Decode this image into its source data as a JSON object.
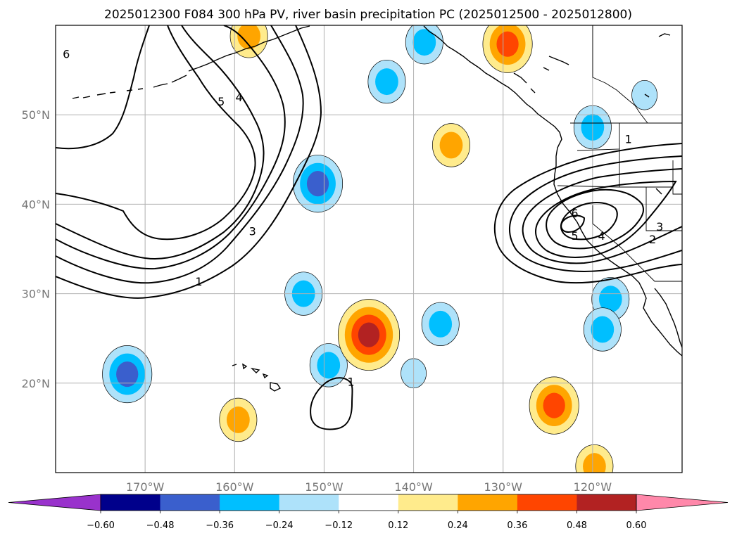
{
  "chart_data": {
    "type": "contour",
    "title": "2025012300 F084 300 hPa PV, river basin precipitation PC (2025012500 - 2025012800)",
    "map": {
      "lon_range": [
        -180,
        -110
      ],
      "lat_range": [
        10,
        60
      ],
      "x_ticks": [
        {
          "lon": -170,
          "label": "170°W"
        },
        {
          "lon": -160,
          "label": "160°W"
        },
        {
          "lon": -150,
          "label": "150°W"
        },
        {
          "lon": -140,
          "label": "140°W"
        },
        {
          "lon": -130,
          "label": "130°W"
        },
        {
          "lon": -120,
          "label": "120°W"
        }
      ],
      "y_ticks": [
        {
          "lat": 20,
          "label": "20°N"
        },
        {
          "lat": 30,
          "label": "30°N"
        },
        {
          "lat": 40,
          "label": "40°N"
        },
        {
          "lat": 50,
          "label": "50°N"
        }
      ],
      "grid": true
    },
    "pv_contours": {
      "levels": [
        1,
        2,
        3,
        4,
        5,
        6
      ],
      "labels": [
        {
          "text": "6",
          "lon": -178.8,
          "lat": 56.8
        },
        {
          "text": "5",
          "lon": -161.5,
          "lat": 51.5
        },
        {
          "text": "4",
          "lon": -159.5,
          "lat": 52.0
        },
        {
          "text": "3",
          "lon": -158.0,
          "lat": 37.0
        },
        {
          "text": "1",
          "lon": -164.0,
          "lat": 31.4
        },
        {
          "text": "1",
          "lon": -147.0,
          "lat": 20.2
        },
        {
          "text": "1",
          "lon": -116.0,
          "lat": 47.3
        },
        {
          "text": "6",
          "lon": -122.0,
          "lat": 39.0
        },
        {
          "text": "5",
          "lon": -122.0,
          "lat": 36.5
        },
        {
          "text": "4",
          "lon": -119.0,
          "lat": 36.5
        },
        {
          "text": "3",
          "lon": -112.5,
          "lat": 37.5
        },
        {
          "text": "2",
          "lon": -113.3,
          "lat": 36.1
        }
      ]
    },
    "precip_pc": {
      "colorbar": {
        "boundaries": [
          -0.6,
          -0.48,
          -0.36,
          -0.24,
          -0.12,
          0.12,
          0.24,
          0.36,
          0.48,
          0.6
        ],
        "tick_labels": [
          "−0.60",
          "−0.48",
          "−0.36",
          "−0.24",
          "−0.12",
          "0.12",
          "0.24",
          "0.36",
          "0.48",
          "0.60"
        ],
        "colors": [
          "#9932cc",
          "#00008b",
          "#3a5fcd",
          "#00bfff",
          "#aee2fa",
          "#ffffff",
          "#ffeb8c",
          "#ffa500",
          "#ff4500",
          "#b22222",
          "#ff88aa"
        ],
        "extend": "both"
      },
      "blobs": [
        {
          "lon": -150.7,
          "lat": 42.3,
          "value": -0.42
        },
        {
          "lon": -172.0,
          "lat": 21.0,
          "value": -0.44
        },
        {
          "lon": -152.3,
          "lat": 30.0,
          "value": -0.3
        },
        {
          "lon": -149.5,
          "lat": 22.0,
          "value": -0.3
        },
        {
          "lon": -138.8,
          "lat": 58.1,
          "value": -0.3
        },
        {
          "lon": -143.0,
          "lat": 53.7,
          "value": -0.3
        },
        {
          "lon": -137.0,
          "lat": 26.6,
          "value": -0.3
        },
        {
          "lon": -140.0,
          "lat": 21.1,
          "value": -0.15
        },
        {
          "lon": -120.0,
          "lat": 48.6,
          "value": -0.3
        },
        {
          "lon": -118.0,
          "lat": 29.4,
          "value": -0.3
        },
        {
          "lon": -118.9,
          "lat": 26.0,
          "value": -0.3
        },
        {
          "lon": -114.2,
          "lat": 52.2,
          "value": -0.15
        },
        {
          "lon": -145.0,
          "lat": 25.4,
          "value": 0.5
        },
        {
          "lon": -124.3,
          "lat": 17.5,
          "value": 0.4
        },
        {
          "lon": -129.5,
          "lat": 57.9,
          "value": 0.38
        },
        {
          "lon": -158.4,
          "lat": 58.8,
          "value": 0.3
        },
        {
          "lon": -135.8,
          "lat": 46.6,
          "value": 0.28
        },
        {
          "lon": -159.6,
          "lat": 15.9,
          "value": 0.28
        },
        {
          "lon": -119.8,
          "lat": 10.7,
          "value": 0.28
        }
      ]
    }
  }
}
